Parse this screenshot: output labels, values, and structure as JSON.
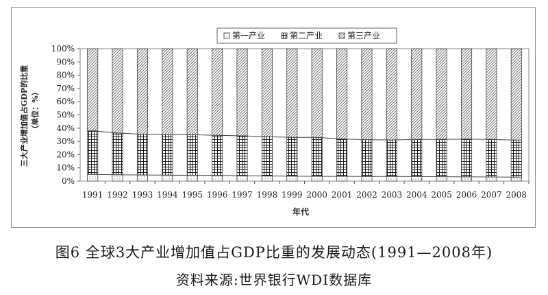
{
  "chart_data": {
    "type": "bar",
    "stacked": true,
    "percent": true,
    "categories": [
      "1991",
      "1992",
      "1993",
      "1994",
      "1995",
      "1996",
      "1997",
      "1998",
      "1999",
      "2000",
      "2001",
      "2002",
      "2003",
      "2004",
      "2005",
      "2006",
      "2007",
      "2008"
    ],
    "series": [
      {
        "name": "第一产业",
        "pattern": "dots",
        "values": [
          5.0,
          4.8,
          4.6,
          4.5,
          4.4,
          4.3,
          4.1,
          3.9,
          3.8,
          3.6,
          3.6,
          3.5,
          3.5,
          3.4,
          3.3,
          3.2,
          3.1,
          3.0
        ]
      },
      {
        "name": "第二产业",
        "pattern": "grid",
        "values": [
          33.0,
          31.5,
          30.8,
          30.7,
          30.6,
          30.3,
          30.1,
          29.6,
          29.2,
          29.4,
          28.2,
          27.8,
          27.6,
          28.1,
          28.2,
          28.5,
          28.4,
          28.0
        ]
      },
      {
        "name": "第三产业",
        "pattern": "diagonal",
        "values": [
          62.0,
          63.7,
          64.6,
          64.8,
          65.0,
          65.4,
          65.8,
          66.5,
          67.0,
          67.0,
          68.2,
          68.7,
          68.9,
          68.5,
          68.5,
          68.3,
          68.5,
          69.0
        ]
      }
    ],
    "ylim": [
      0,
      100
    ],
    "yticks": [
      "0%",
      "10%",
      "20%",
      "30%",
      "40%",
      "50%",
      "60%",
      "70%",
      "80%",
      "90%",
      "100%"
    ],
    "xlabel": "年代",
    "ylabel": "三大产业增加值占GDP的比重",
    "ylabel_unit": "（单位：%）",
    "legend_position": "top-center",
    "grid": false
  },
  "figure": {
    "title": "图6  全球3大产业增加值占GDP比重的发展动态(1991—2008年)",
    "source": "资料来源:世界银行WDI数据库"
  }
}
